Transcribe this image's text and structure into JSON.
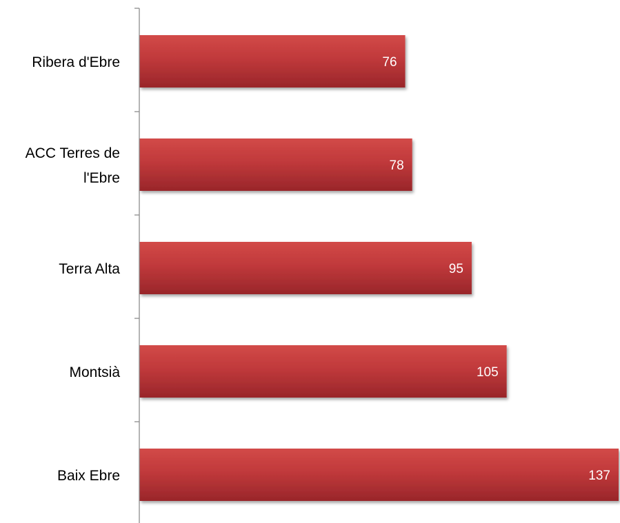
{
  "chart_data": {
    "type": "bar",
    "orientation": "horizontal",
    "categories": [
      "Ribera d'Ebre",
      "ACC Terres de l'Ebre",
      "Terra Alta",
      "Montsià",
      "Baix Ebre"
    ],
    "category_label_lines": [
      [
        "Ribera d'Ebre"
      ],
      [
        "ACC Terres de",
        "l'Ebre"
      ],
      [
        "Terra Alta"
      ],
      [
        "Montsià"
      ],
      [
        "Baix Ebre"
      ]
    ],
    "values": [
      76,
      78,
      95,
      105,
      137
    ],
    "data_labels": [
      "76",
      "78",
      "95",
      "105",
      "137"
    ],
    "xlim": [
      0,
      137
    ],
    "grid": false,
    "legend": "none",
    "colors": {
      "bar_top": "#d24a48",
      "bar_mid": "#c0393b",
      "bar_bottom": "#99262a",
      "axis": "#8c8c8c",
      "category_text": "#000000",
      "value_text": "#ffffff"
    }
  }
}
